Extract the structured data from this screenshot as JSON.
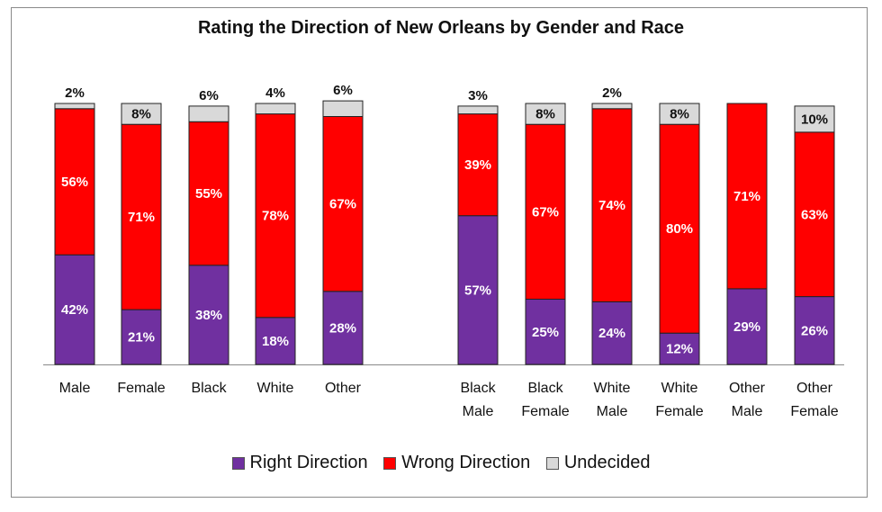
{
  "chart_data": {
    "type": "bar",
    "stacked": true,
    "title": "Rating the Direction of New Orleans by Gender and Race",
    "ylim": [
      0,
      100
    ],
    "grid": false,
    "legend_position": "bottom",
    "categories": [
      [
        "Male"
      ],
      [
        "Female"
      ],
      [
        "Black"
      ],
      [
        "White"
      ],
      [
        "Other"
      ],
      [
        "Black",
        "Male"
      ],
      [
        "Black",
        "Female"
      ],
      [
        "White",
        "Male"
      ],
      [
        "White",
        "Female"
      ],
      [
        "Other",
        "Male"
      ],
      [
        "Other",
        "Female"
      ]
    ],
    "series": [
      {
        "name": "Right Direction",
        "color": "#7030a0",
        "values": [
          42,
          21,
          38,
          18,
          28,
          57,
          25,
          24,
          12,
          29,
          26
        ],
        "labels": [
          "42%",
          "21%",
          "38%",
          "18%",
          "28%",
          "57%",
          "25%",
          "24%",
          "12%",
          "29%",
          "26%"
        ]
      },
      {
        "name": "Wrong Direction",
        "color": "#ff0000",
        "values": [
          56,
          71,
          55,
          78,
          67,
          39,
          67,
          74,
          80,
          71,
          63
        ],
        "labels": [
          "56%",
          "71%",
          "55%",
          "78%",
          "67%",
          "39%",
          "67%",
          "74%",
          "80%",
          "71%",
          "63%"
        ]
      },
      {
        "name": "Undecided",
        "color": "#d9d9d9",
        "values": [
          2,
          8,
          6,
          4,
          6,
          3,
          8,
          2,
          8,
          0,
          10
        ],
        "labels": [
          "2%",
          "8%",
          "6%",
          "4%",
          "6%",
          "3%",
          "8%",
          "2%",
          "8%",
          "",
          "10%"
        ]
      }
    ]
  }
}
